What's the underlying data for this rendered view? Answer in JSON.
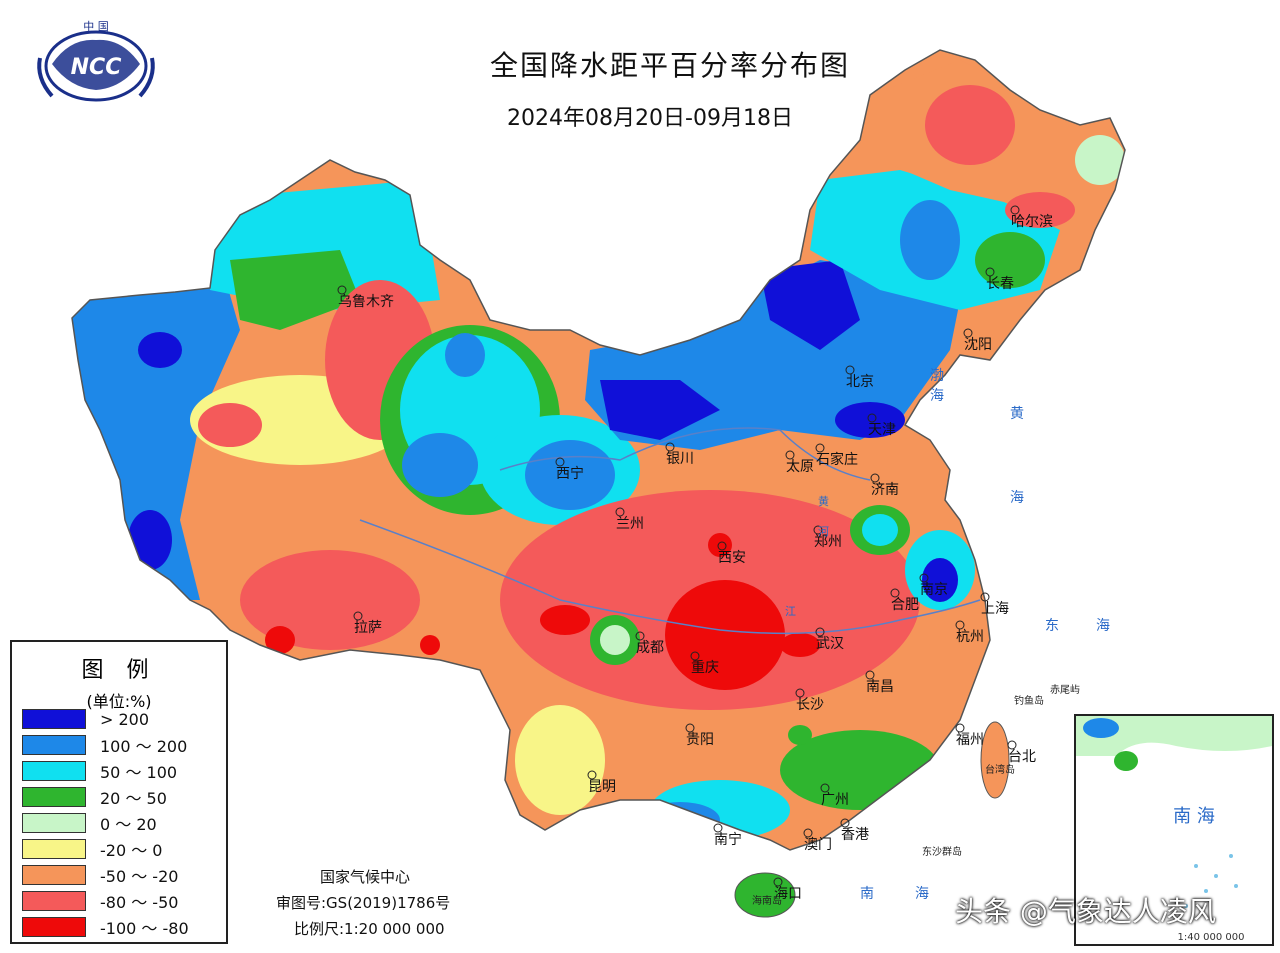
{
  "title": "全国降水距平百分率分布图",
  "date_range": "2024年08月20日-09月18日",
  "logo": {
    "top_text": "中 国",
    "text": "NCC"
  },
  "legend": {
    "title": "图 例",
    "unit": "(单位:%)",
    "items": [
      {
        "label": "> 200",
        "color": "#1010d8"
      },
      {
        "label": "100 ～ 200",
        "color": "#1e88e8"
      },
      {
        "label": "50 ～ 100",
        "color": "#10e0f0"
      },
      {
        "label": "20 ～ 50",
        "color": "#2fb52f"
      },
      {
        "label": "0 ～ 20",
        "color": "#c8f5c8"
      },
      {
        "label": "-20 ～ 0",
        "color": "#f8f588"
      },
      {
        "label": "-50 ～ -20",
        "color": "#f5955a"
      },
      {
        "label": "-80 ～ -50",
        "color": "#f45a5a"
      },
      {
        "label": "-100 ～ -80",
        "color": "#ee0a0a"
      }
    ]
  },
  "credits": {
    "org": "国家气候中心",
    "approval": "审图号:GS(2019)1786号",
    "scale": "比例尺:1:20 000 000"
  },
  "cities": [
    "乌鲁木齐",
    "北京",
    "天津",
    "石家庄",
    "太原",
    "银川",
    "西宁",
    "兰州",
    "济南",
    "郑州",
    "西安",
    "南京",
    "合肥",
    "上海",
    "杭州",
    "武汉",
    "成都",
    "重庆",
    "拉萨",
    "长沙",
    "南昌",
    "贵阳",
    "福州",
    "台北",
    "昆明",
    "广州",
    "南宁",
    "澳门",
    "香港",
    "海口",
    "哈尔滨",
    "长春",
    "沈阳"
  ],
  "sea_labels": [
    "渤",
    "海",
    "黄",
    "海",
    "东",
    "海",
    "南",
    "海"
  ],
  "islands": [
    "钓鱼岛",
    "赤尾屿",
    "台湾岛",
    "东沙群岛",
    "海南岛"
  ],
  "river_labels": [
    "黄",
    "河",
    "江"
  ],
  "inset": {
    "label": "南 海",
    "scale": "1:40 000 000"
  },
  "watermark": "头条 @气象达人凌风"
}
